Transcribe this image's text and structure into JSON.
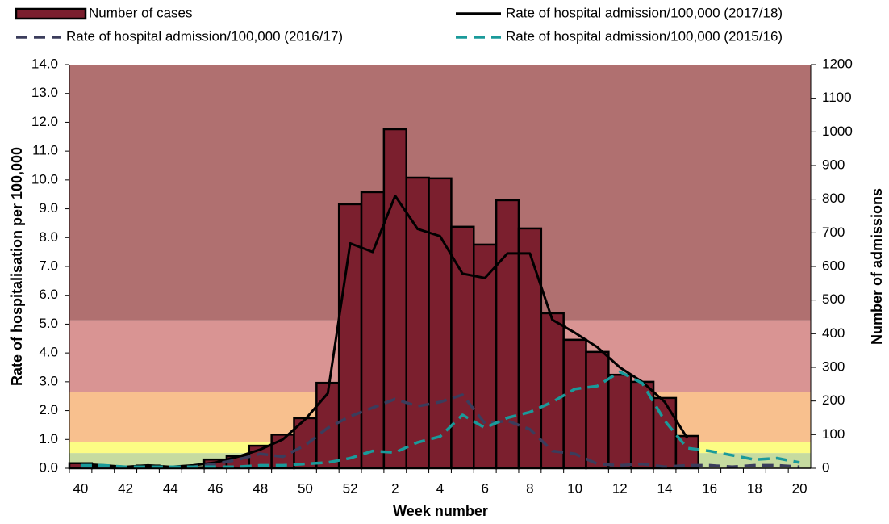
{
  "chart_data": {
    "type": "bar",
    "y_label": "Rate of hospitalisation per 100,000",
    "y2_label": "Number of admissions",
    "x_label": "Week number",
    "categories": [
      "40",
      null,
      "42",
      null,
      "44",
      null,
      "46",
      null,
      "48",
      null,
      "50",
      null,
      "52",
      null,
      "2",
      null,
      "4",
      null,
      "6",
      null,
      "8",
      null,
      "10",
      null,
      "12",
      null,
      "14",
      null,
      "16",
      null,
      "18",
      null,
      "20"
    ],
    "series": [
      {
        "name": "Number of cases",
        "type": "bar",
        "axis": "y2",
        "color": "#7b1f2e",
        "values": [
          15,
          5,
          3,
          8,
          3,
          3,
          26,
          36,
          67,
          100,
          149,
          254,
          785,
          821,
          1008,
          864,
          862,
          718,
          665,
          797,
          713,
          461,
          382,
          346,
          278,
          257,
          209,
          96,
          null,
          null,
          null,
          null,
          null
        ]
      },
      {
        "name": "Rate of hospital admission/100,000 (2017/18)",
        "type": "line",
        "style": "solid",
        "color": "#000000",
        "values": [
          0.15,
          0.1,
          0.05,
          0.1,
          0.05,
          0.1,
          0.2,
          0.4,
          0.65,
          1.0,
          1.7,
          2.6,
          7.8,
          7.5,
          9.45,
          8.3,
          8.05,
          6.75,
          6.6,
          7.45,
          7.45,
          5.15,
          4.7,
          4.2,
          3.5,
          3.0,
          2.3,
          1.05,
          null,
          null,
          null,
          null,
          null
        ]
      },
      {
        "name": "Rate of hospital admission/100,000 (2016/17)",
        "type": "line",
        "style": "dashed",
        "color": "#3b3d5c",
        "values": [
          0.05,
          0.05,
          0.05,
          0.05,
          0.05,
          0.05,
          0.15,
          0.3,
          0.5,
          0.4,
          0.8,
          1.4,
          1.8,
          2.1,
          2.4,
          2.15,
          2.3,
          2.55,
          1.55,
          1.65,
          1.35,
          0.6,
          0.5,
          0.15,
          0.1,
          0.15,
          0.05,
          0.1,
          0.1,
          0.05,
          0.1,
          0.1,
          0.05
        ]
      },
      {
        "name": "Rate of hospital admission/100,000 (2015/16)",
        "type": "line",
        "style": "dashed",
        "color": "#1a9a9a",
        "values": [
          0.1,
          0.1,
          0.05,
          0.05,
          0.05,
          0.05,
          0.05,
          0.05,
          0.1,
          0.1,
          0.15,
          0.2,
          0.35,
          0.6,
          0.55,
          0.9,
          1.1,
          1.85,
          1.4,
          1.75,
          1.95,
          2.3,
          2.75,
          2.85,
          3.35,
          2.95,
          1.65,
          0.7,
          0.6,
          0.45,
          0.3,
          0.35,
          0.2
        ]
      }
    ],
    "bands": [
      {
        "from": 0,
        "to": 0.53,
        "color": "#c6dba0"
      },
      {
        "from": 0.53,
        "to": 0.92,
        "color": "#fcfc84"
      },
      {
        "from": 0.92,
        "to": 2.66,
        "color": "#f8c08e"
      },
      {
        "from": 2.66,
        "to": 5.13,
        "color": "#d99493"
      },
      {
        "from": 5.13,
        "to": 14,
        "color": "#b07070"
      }
    ],
    "ylim": [
      0,
      14
    ],
    "yticks": [
      {
        "value": 0,
        "label": "0.0"
      },
      {
        "value": 1,
        "label": "1.0"
      },
      {
        "value": 2,
        "label": "2.0"
      },
      {
        "value": 3,
        "label": "3.0"
      },
      {
        "value": 4,
        "label": "4.0"
      },
      {
        "value": 5,
        "label": "5.0"
      },
      {
        "value": 6,
        "label": "6.0"
      },
      {
        "value": 7,
        "label": "7.0"
      },
      {
        "value": 8,
        "label": "8.0"
      },
      {
        "value": 9,
        "label": "9.0"
      },
      {
        "value": 10,
        "label": "10.0"
      },
      {
        "value": 11,
        "label": "11.0"
      },
      {
        "value": 12,
        "label": "12.0"
      },
      {
        "value": 13,
        "label": "13.0"
      },
      {
        "value": 14,
        "label": "14.0"
      }
    ],
    "y2lim": [
      0,
      1200
    ],
    "y2ticks": [
      0,
      100,
      200,
      300,
      400,
      500,
      600,
      700,
      800,
      900,
      1000,
      1100,
      1200
    ],
    "grid": false
  }
}
